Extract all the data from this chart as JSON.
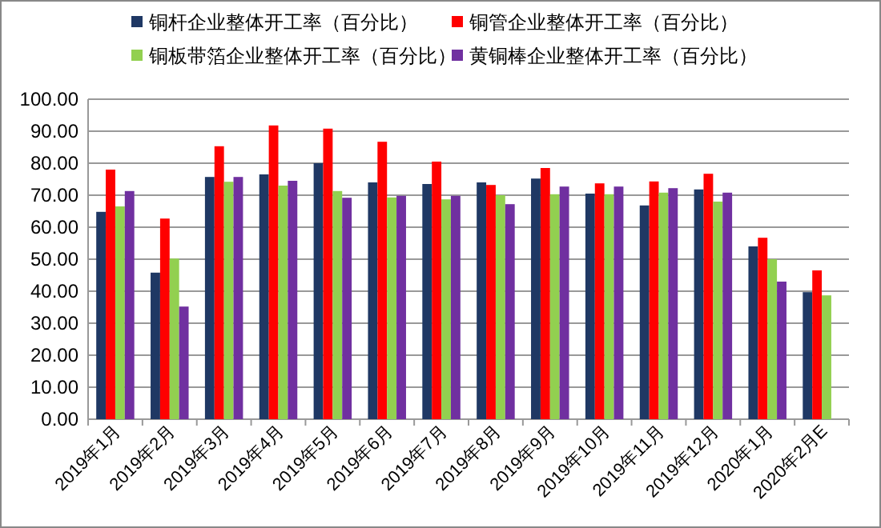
{
  "chart_data": {
    "type": "bar",
    "categories": [
      "2019年1月",
      "2019年2月",
      "2019年3月",
      "2019年4月",
      "2019年5月",
      "2019年6月",
      "2019年7月",
      "2019年8月",
      "2019年9月",
      "2019年10月",
      "2019年11月",
      "2019年12月",
      "2020年1月",
      "2020年2月E"
    ],
    "series": [
      {
        "name": "铜杆企业整体开工率（百分比）",
        "color": "#1f3864",
        "values": [
          64.8,
          45.8,
          75.7,
          76.5,
          80,
          74,
          73.5,
          74,
          75.2,
          70.5,
          66.8,
          71.8,
          54,
          39.7
        ]
      },
      {
        "name": "铜管企业整体开工率（百分比）",
        "color": "#ff0000",
        "values": [
          78,
          62.7,
          85.3,
          91.8,
          90.8,
          86.7,
          80.5,
          73.2,
          78.5,
          73.7,
          74.3,
          76.7,
          56.7,
          46.5
        ]
      },
      {
        "name": "铜板带箔企业整体开工率（百分比）",
        "color": "#92d050",
        "values": [
          66.5,
          50.2,
          74.2,
          73,
          71.3,
          69.3,
          68.7,
          70,
          70.3,
          70.3,
          70.8,
          68,
          50,
          38.7
        ]
      },
      {
        "name": "黄铜棒企业整体开工率（百分比）",
        "color": "#7030a0",
        "values": [
          71.3,
          35.2,
          75.7,
          74.5,
          69.2,
          69.8,
          69.8,
          67.2,
          72.7,
          72.7,
          72.2,
          70.8,
          43,
          null
        ]
      }
    ],
    "ylim": [
      0,
      100
    ],
    "yticks": [
      {
        "value": 0,
        "label": "0.00"
      },
      {
        "value": 10,
        "label": "10.00"
      },
      {
        "value": 20,
        "label": "20.00"
      },
      {
        "value": 30,
        "label": "30.00"
      },
      {
        "value": 40,
        "label": "40.00"
      },
      {
        "value": 50,
        "label": "50.00"
      },
      {
        "value": 60,
        "label": "60.00"
      },
      {
        "value": 70,
        "label": "70.00"
      },
      {
        "value": 80,
        "label": "80.00"
      },
      {
        "value": 90,
        "label": "90.00"
      },
      {
        "value": 100,
        "label": "100.00"
      }
    ],
    "grid": "y",
    "legend": "top"
  }
}
